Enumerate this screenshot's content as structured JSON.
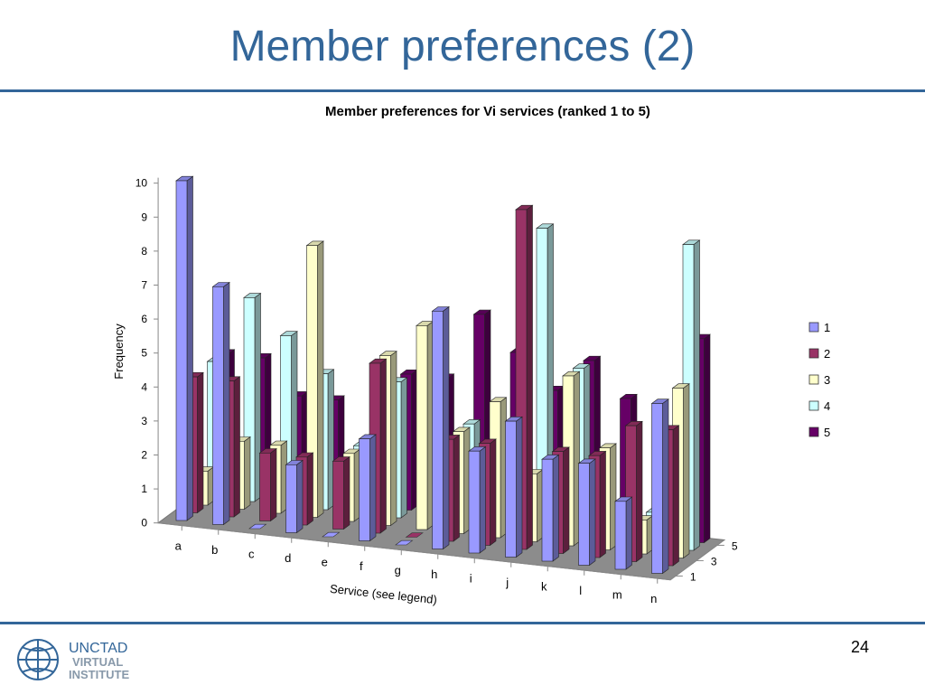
{
  "slide": {
    "title": "Member preferences (2)",
    "page_number": "24",
    "logo_text_line1": "UNCTAD",
    "logo_text_line2": "VIRTUAL",
    "logo_text_line3": "INSTITUTE"
  },
  "chart_data": {
    "type": "bar",
    "title": "Member preferences for Vi services (ranked 1 to 5)",
    "xlabel": "Service (see legend)",
    "ylabel": "Frequency",
    "ylim": [
      0,
      10
    ],
    "yticks": [
      "0",
      "1",
      "2",
      "3",
      "4",
      "5",
      "6",
      "7",
      "8",
      "9",
      "10"
    ],
    "depth_ticks": [
      "1",
      "3",
      "5"
    ],
    "categories": [
      "a",
      "b",
      "c",
      "d",
      "e",
      "f",
      "g",
      "h",
      "i",
      "j",
      "k",
      "l",
      "m",
      "n"
    ],
    "legend_position": "right",
    "series": [
      {
        "name": "1",
        "color": "#9999ff",
        "values": [
          10,
          7,
          0,
          2,
          0,
          3,
          0,
          7,
          3,
          4,
          3,
          3,
          2,
          5
        ]
      },
      {
        "name": "2",
        "color": "#993366",
        "values": [
          4,
          4,
          2,
          2,
          2,
          5,
          0,
          3,
          3,
          10,
          3,
          3,
          4,
          4
        ]
      },
      {
        "name": "3",
        "color": "#ffffcc",
        "values": [
          1,
          2,
          2,
          8,
          2,
          5,
          6,
          3,
          4,
          2,
          5,
          3,
          1,
          5
        ]
      },
      {
        "name": "4",
        "color": "#ccffff",
        "values": [
          4,
          6,
          5,
          4,
          2,
          4,
          2,
          3,
          0,
          9,
          5,
          0,
          1,
          9
        ]
      },
      {
        "name": "5",
        "color": "#660066",
        "values": [
          4,
          4,
          3,
          3,
          2,
          4,
          4,
          6,
          5,
          4,
          5,
          4,
          1,
          6
        ]
      }
    ]
  }
}
